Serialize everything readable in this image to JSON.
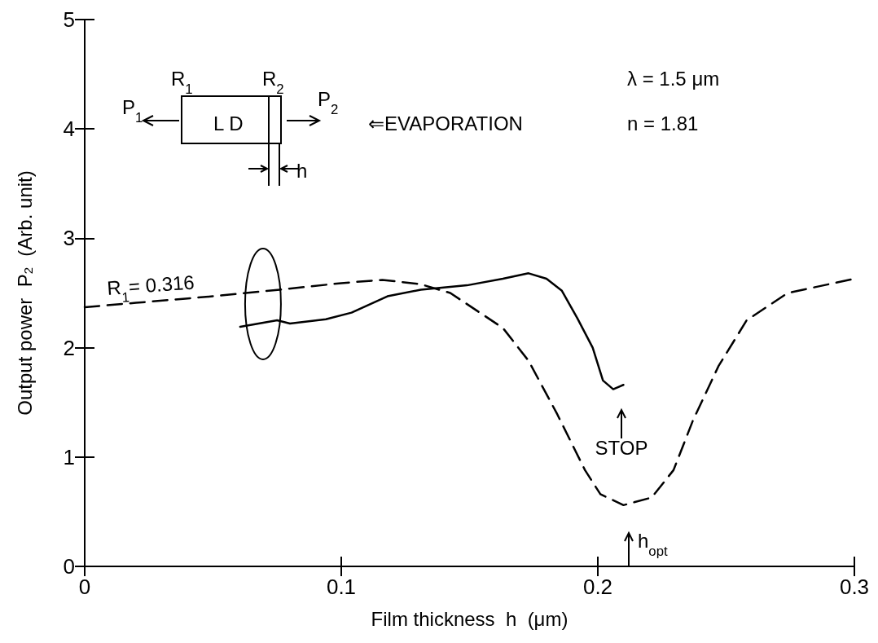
{
  "chart_data": {
    "type": "line",
    "xlabel": "Film thickness  h  (μm)",
    "ylabel": "Output power  P$_{2}$  (Arb. unit)",
    "xlim": [
      0,
      0.3
    ],
    "xticks": [
      0,
      0.1,
      0.2,
      0.3
    ],
    "ylim": [
      0,
      5
    ],
    "yticks": [
      0,
      1,
      2,
      3,
      4,
      5
    ],
    "grid": false,
    "marker": "none",
    "series": [
      {
        "color": "#000000",
        "line_style": "solid",
        "x": [
          0.0606,
          0.075,
          0.08,
          0.094,
          0.104,
          0.118,
          0.131,
          0.149,
          0.163,
          0.173,
          0.18,
          0.186,
          0.192,
          0.198,
          0.202,
          0.206,
          0.21
        ],
        "values": [
          2.19,
          2.25,
          2.22,
          2.26,
          2.32,
          2.47,
          2.53,
          2.57,
          2.63,
          2.68,
          2.63,
          2.52,
          2.27,
          2.0,
          1.7,
          1.62,
          1.66
        ]
      },
      {
        "color": "#000000",
        "line_style": "dashed",
        "x": [
          0,
          0.02,
          0.05,
          0.076,
          0.1,
          0.116,
          0.131,
          0.1425,
          0.163,
          0.173,
          0.184,
          0.195,
          0.201,
          0.21,
          0.221,
          0.2295,
          0.237,
          0.247,
          0.258,
          0.274,
          0.3
        ],
        "values": [
          2.37,
          2.41,
          2.47,
          2.53,
          2.59,
          2.62,
          2.58,
          2.5,
          2.18,
          1.88,
          1.4,
          0.88,
          0.66,
          0.56,
          0.63,
          0.88,
          1.33,
          1.83,
          2.25,
          2.5,
          2.63
        ]
      }
    ],
    "annotations": [
      "R$_{1}$= 0.316",
      "STOP",
      "h$_{opt}$",
      "P$_{1}$",
      "R$_{1}$",
      "L D",
      "R$_{2}$",
      "P$_{2}$",
      "h",
      "⇐EVAPORATION",
      "λ = 1.5 μm",
      "n = 1.81"
    ]
  }
}
